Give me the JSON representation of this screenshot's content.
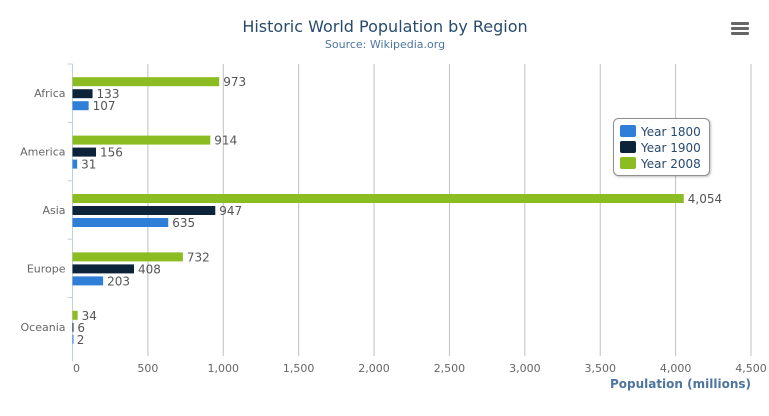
{
  "chart_data": {
    "type": "bar",
    "orientation": "horizontal",
    "title": "Historic World Population by Region",
    "subtitle": "Source: Wikipedia.org",
    "xlabel": "",
    "ylabel": "Population (millions)",
    "categories": [
      "Africa",
      "America",
      "Asia",
      "Europe",
      "Oceania"
    ],
    "series": [
      {
        "name": "Year 1800",
        "color": "#2f7ed8",
        "values": [
          107,
          31,
          635,
          203,
          2
        ]
      },
      {
        "name": "Year 1900",
        "color": "#0d233a",
        "values": [
          133,
          156,
          947,
          408,
          6
        ]
      },
      {
        "name": "Year 2008",
        "color": "#8bbc21",
        "values": [
          973,
          914,
          4054,
          732,
          34
        ]
      }
    ],
    "value_axis": {
      "min": 0,
      "max": 4500,
      "ticks": [
        0,
        500,
        1000,
        1500,
        2000,
        2500,
        3000,
        3500,
        4000,
        4500
      ],
      "tick_labels": [
        "0",
        "500",
        "1,000",
        "1,500",
        "2,000",
        "2,500",
        "3,000",
        "3,500",
        "4,000",
        "4,500"
      ]
    },
    "grid": true,
    "data_labels": true,
    "legend_position": "right, inside plot, top"
  },
  "menu_icon": "hamburger-menu-icon",
  "colors": {
    "title": "#274b6d",
    "subtitle": "#4d759e",
    "axis_title": "#4d759e",
    "labels": "#666666"
  }
}
